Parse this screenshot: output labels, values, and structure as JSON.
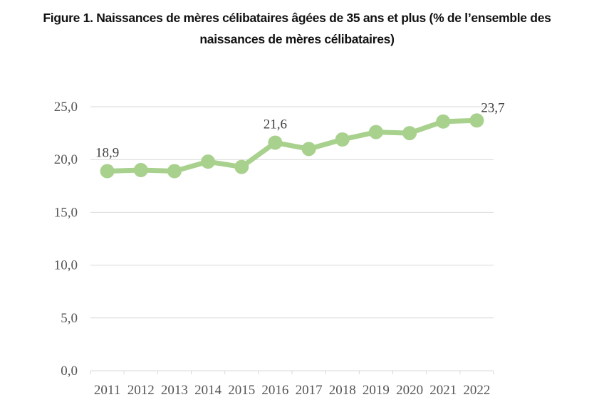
{
  "chart_data": {
    "type": "line",
    "title": "Figure 1. Naissances de mères célibataires âgées de 35 ans et plus (% de l’ensemble des naissances de mères célibataires)",
    "title_lines": [
      "Figure 1. Naissances de mères célibataires âgées de 35 ans et plus (% de l’ensemble des",
      "naissances de mères célibataires)"
    ],
    "xlabel": "",
    "ylabel": "",
    "categories": [
      "2011",
      "2012",
      "2013",
      "2014",
      "2015",
      "2016",
      "2017",
      "2018",
      "2019",
      "2020",
      "2021",
      "2022"
    ],
    "series": [
      {
        "name": "Naissances de mères célibataires âgées de 35 ans et plus",
        "values": [
          18.9,
          19.0,
          18.9,
          19.8,
          19.3,
          21.6,
          21.0,
          21.9,
          22.6,
          22.5,
          23.6,
          23.7
        ],
        "color": "#a9d18e"
      }
    ],
    "data_labels": [
      {
        "category": "2011",
        "text": "18,9"
      },
      {
        "category": "2016",
        "text": "21,6"
      },
      {
        "category": "2022",
        "text": "23,7"
      }
    ],
    "ylim": [
      0,
      25
    ],
    "yticks": [
      0,
      5,
      10,
      15,
      20,
      25
    ],
    "ytick_labels": [
      "0,0",
      "5,0",
      "10,0",
      "15,0",
      "20,0",
      "25,0"
    ],
    "grid": true,
    "legend": "none"
  }
}
